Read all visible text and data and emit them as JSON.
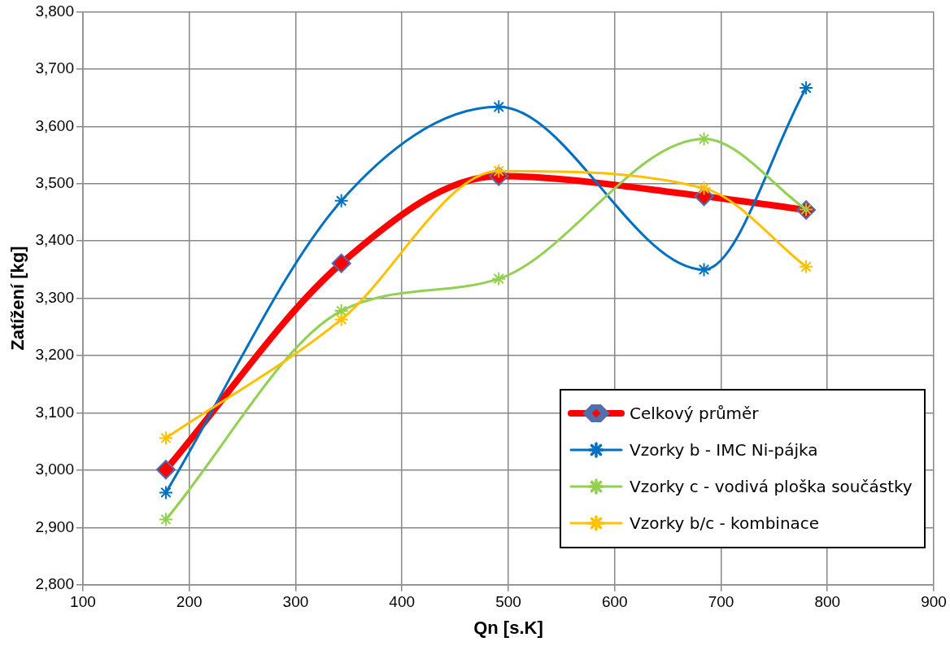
{
  "chart_data": {
    "type": "line",
    "xlabel": "Qn [s.K]",
    "ylabel": "Zatížení [kg]",
    "xlim": [
      100,
      900
    ],
    "xticks": [
      100,
      200,
      300,
      400,
      500,
      600,
      700,
      800,
      900
    ],
    "ylim": [
      2800,
      3800
    ],
    "yticks": [
      {
        "value": 2800,
        "label": "2,800"
      },
      {
        "value": 2900,
        "label": "2,900"
      },
      {
        "value": 3000,
        "label": "3,000"
      },
      {
        "value": 3100,
        "label": "3,100"
      },
      {
        "value": 3200,
        "label": "3,200"
      },
      {
        "value": 3300,
        "label": "3,300"
      },
      {
        "value": 3400,
        "label": "3,400"
      },
      {
        "value": 3500,
        "label": "3,500"
      },
      {
        "value": 3600,
        "label": "3,600"
      },
      {
        "value": 3700,
        "label": "3,700"
      },
      {
        "value": 3800,
        "label": "3,800"
      }
    ],
    "x": [
      178,
      343,
      491,
      684,
      780
    ],
    "grid": true,
    "legend": "bottom right",
    "line_style": "solid",
    "series": [
      {
        "name": "Celkový průměr",
        "color": "#ff0000",
        "marker": "diamond",
        "values": [
          3001,
          3361,
          3513,
          3478,
          3454
        ]
      },
      {
        "name": "Vzorky b - IMC Ni-pájka",
        "color": "#0070c0",
        "marker": "cross",
        "values": [
          2961,
          3470,
          3634,
          3350,
          3667
        ]
      },
      {
        "name": "Vzorky c - vodivá ploška součástky",
        "color": "#92d050",
        "marker": "cross",
        "values": [
          2914,
          3278,
          3334,
          3578,
          3455
        ]
      },
      {
        "name": "Vzorky b/c - kombinace",
        "color": "#ffc000",
        "marker": "cross",
        "values": [
          3056,
          3263,
          3522,
          3492,
          3355
        ]
      }
    ]
  }
}
